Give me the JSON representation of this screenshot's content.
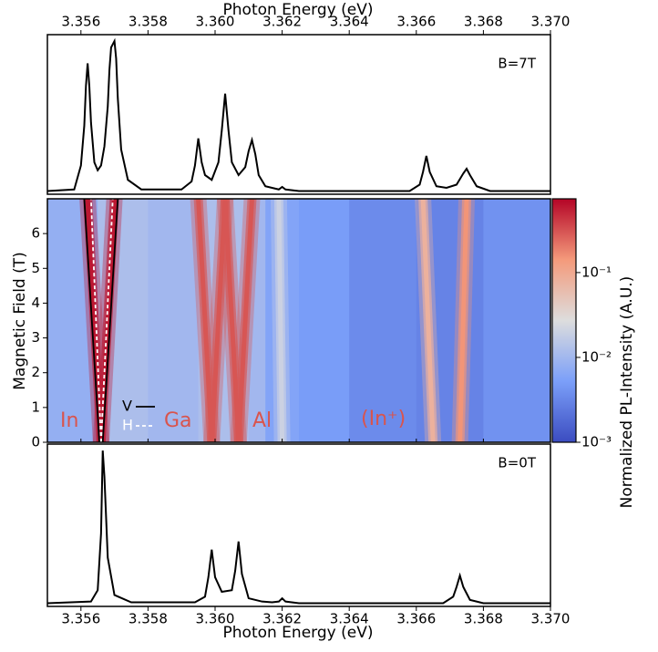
{
  "chart_data": [
    {
      "type": "line",
      "x_label": "Photon Energy (eV)",
      "annotation": "B=7T",
      "axis_position": "top",
      "xlim": [
        3.355,
        3.37
      ],
      "ylim": [
        0,
        1
      ],
      "xticks": [
        3.356,
        3.358,
        {
          "value": 3.36,
          "label": "3.360"
        },
        3.362,
        3.364,
        3.366,
        3.368,
        {
          "value": 3.37,
          "label": "3.370"
        }
      ],
      "series": [
        {
          "color": "#000000",
          "x": [
            3.355,
            3.3558,
            3.356,
            3.3561,
            3.35615,
            3.3562,
            3.35625,
            3.3563,
            3.3564,
            3.3565,
            3.3566,
            3.3567,
            3.3568,
            3.35685,
            3.3569,
            3.357,
            3.35705,
            3.3571,
            3.3572,
            3.3574,
            3.3578,
            3.359,
            3.3593,
            3.3594,
            3.3595,
            3.3596,
            3.3597,
            3.3599,
            3.3601,
            3.3602,
            3.3603,
            3.3604,
            3.3605,
            3.3607,
            3.3609,
            3.361,
            3.3611,
            3.3612,
            3.3613,
            3.3615,
            3.3619,
            3.362,
            3.3621,
            3.3625,
            3.3658,
            3.3661,
            3.3662,
            3.3663,
            3.3664,
            3.3666,
            3.3669,
            3.3672,
            3.3674,
            3.3675,
            3.3676,
            3.3678,
            3.3682,
            3.37
          ],
          "values": [
            0.02,
            0.03,
            0.18,
            0.43,
            0.68,
            0.82,
            0.68,
            0.45,
            0.2,
            0.15,
            0.18,
            0.3,
            0.55,
            0.78,
            0.92,
            0.96,
            0.85,
            0.6,
            0.28,
            0.09,
            0.03,
            0.03,
            0.08,
            0.18,
            0.35,
            0.2,
            0.12,
            0.09,
            0.2,
            0.4,
            0.63,
            0.4,
            0.2,
            0.12,
            0.17,
            0.27,
            0.34,
            0.25,
            0.12,
            0.05,
            0.03,
            0.046,
            0.03,
            0.02,
            0.02,
            0.06,
            0.14,
            0.24,
            0.14,
            0.05,
            0.04,
            0.06,
            0.13,
            0.16,
            0.12,
            0.05,
            0.02,
            0.02
          ]
        }
      ]
    },
    {
      "type": "heatmap",
      "y_label": "Magnetic Field (T)",
      "colorbar_label": "Normalized PL-Intensity (A.U.)",
      "xlim": [
        3.355,
        3.37
      ],
      "ylim": [
        0,
        7
      ],
      "xticks": [
        3.356,
        3.358,
        3.36,
        3.362,
        3.364,
        3.366,
        3.368,
        3.37
      ],
      "yticks": [
        0,
        1,
        2,
        3,
        4,
        5,
        6
      ],
      "clim": [
        0.001,
        0.74
      ],
      "log_color": true,
      "cticks": [
        {
          "value": 0.001,
          "label": "10⁻³"
        },
        {
          "value": 0.01,
          "label": "10⁻²"
        },
        {
          "value": 0.1,
          "label": "10⁻¹"
        }
      ],
      "colormap": [
        "#3b4cc0",
        "#7b9ff9",
        "#dddddd",
        "#f49a7b",
        "#b40426"
      ],
      "background": {
        "x": [
          3.355,
          3.3565,
          3.358,
          3.3595,
          3.361,
          3.3615,
          3.3625,
          3.364,
          3.366,
          3.368,
          3.37
        ],
        "values": [
          0.008,
          0.012,
          0.01,
          0.012,
          0.01,
          0.006,
          0.005,
          0.0035,
          0.003,
          0.004,
          0.0025
        ]
      },
      "branches": [
        {
          "x": [
            3.3566,
            3.3562
          ],
          "field": [
            0,
            7
          ],
          "intensity": 0.6
        },
        {
          "x": [
            3.3566,
            3.357
          ],
          "field": [
            0,
            7
          ],
          "intensity": 0.6
        },
        {
          "x": [
            3.3599,
            3.3595
          ],
          "field": [
            0,
            7
          ],
          "intensity": 0.3
        },
        {
          "x": [
            3.3599,
            3.3603
          ],
          "field": [
            0,
            7
          ],
          "intensity": 0.3
        },
        {
          "x": [
            3.3607,
            3.3603
          ],
          "field": [
            0,
            7
          ],
          "intensity": 0.3
        },
        {
          "x": [
            3.3607,
            3.3611
          ],
          "field": [
            0,
            7
          ],
          "intensity": 0.3
        },
        {
          "x": [
            3.362,
            3.3619
          ],
          "field": [
            0,
            7
          ],
          "intensity": 0.02
        },
        {
          "x": [
            3.3665,
            3.3662
          ],
          "field": [
            0,
            7
          ],
          "intensity": 0.08
        },
        {
          "x": [
            3.3673,
            3.3675
          ],
          "field": [
            0,
            7
          ],
          "intensity": 0.15
        }
      ],
      "fits": [
        {
          "name": "V",
          "color": "#000000",
          "dash": false,
          "lines": [
            {
              "x": [
                3.35655,
                3.3561
              ],
              "field": [
                0,
                7
              ]
            },
            {
              "x": [
                3.35665,
                3.3571
              ],
              "field": [
                0,
                7
              ]
            }
          ]
        },
        {
          "name": "H",
          "color": "#ffffff",
          "dash": true,
          "lines": [
            {
              "x": [
                3.3566,
                3.3563
              ],
              "field": [
                0,
                7
              ]
            },
            {
              "x": [
                3.3566,
                3.35695
              ],
              "field": [
                0,
                7
              ]
            }
          ]
        }
      ],
      "annotations": [
        "In",
        "Ga",
        "Al",
        "(In⁺)"
      ]
    },
    {
      "type": "line",
      "x_label": "Photon Energy (eV)",
      "annotation": "B=0T",
      "axis_position": "bottom",
      "xlim": [
        3.355,
        3.37
      ],
      "ylim": [
        0,
        1
      ],
      "xticks": [
        3.356,
        3.358,
        {
          "value": 3.36,
          "label": "3.360"
        },
        3.362,
        3.364,
        3.366,
        3.368,
        {
          "value": 3.37,
          "label": "3.370"
        }
      ],
      "series": [
        {
          "color": "#000000",
          "x": [
            3.355,
            3.3563,
            3.3565,
            3.3566,
            3.35665,
            3.3567,
            3.3568,
            3.357,
            3.3575,
            3.3594,
            3.3597,
            3.3598,
            3.3599,
            3.36,
            3.3602,
            3.3605,
            3.3606,
            3.3607,
            3.3608,
            3.361,
            3.3614,
            3.3617,
            3.3619,
            3.362,
            3.3621,
            3.3625,
            3.3668,
            3.3671,
            3.3672,
            3.3673,
            3.3674,
            3.3676,
            3.368,
            3.37
          ],
          "values": [
            0.02,
            0.03,
            0.1,
            0.45,
            0.96,
            0.8,
            0.3,
            0.07,
            0.025,
            0.025,
            0.06,
            0.18,
            0.35,
            0.18,
            0.09,
            0.1,
            0.22,
            0.4,
            0.2,
            0.05,
            0.03,
            0.025,
            0.03,
            0.05,
            0.03,
            0.02,
            0.02,
            0.06,
            0.12,
            0.19,
            0.12,
            0.04,
            0.02,
            0.02
          ]
        }
      ]
    }
  ]
}
